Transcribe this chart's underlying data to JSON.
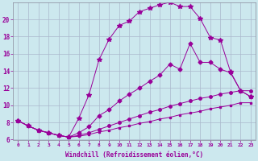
{
  "xlabel": "Windchill (Refroidissement éolien,°C)",
  "background_color": "#cce8ee",
  "grid_color": "#aab8cc",
  "line_color": "#990099",
  "xlim": [
    -0.5,
    23.5
  ],
  "ylim": [
    6,
    22
  ],
  "xticks": [
    0,
    1,
    2,
    3,
    4,
    5,
    6,
    7,
    8,
    9,
    10,
    11,
    12,
    13,
    14,
    15,
    16,
    17,
    18,
    19,
    20,
    21,
    22,
    23
  ],
  "yticks": [
    6,
    8,
    10,
    12,
    14,
    16,
    18,
    20
  ],
  "line1_x": [
    0,
    1,
    2,
    3,
    4,
    5,
    6,
    7,
    8,
    9,
    10,
    11,
    12,
    13,
    14,
    15,
    16,
    17,
    18,
    19,
    20,
    21,
    22,
    23
  ],
  "line1_y": [
    8.2,
    7.6,
    7.1,
    6.8,
    6.5,
    6.3,
    8.5,
    11.2,
    15.3,
    17.7,
    19.3,
    19.8,
    20.9,
    21.3,
    21.7,
    22.0,
    21.5,
    21.5,
    20.1,
    17.9,
    17.6,
    13.9,
    11.7,
    11.0
  ],
  "line2_x": [
    0,
    1,
    2,
    3,
    4,
    5,
    6,
    7,
    8,
    9,
    10,
    11,
    12,
    13,
    14,
    15,
    16,
    17,
    18,
    19,
    20,
    21,
    22,
    23
  ],
  "line2_y": [
    8.2,
    7.6,
    7.1,
    6.8,
    6.5,
    6.3,
    6.8,
    7.5,
    8.8,
    9.5,
    10.5,
    11.3,
    12.0,
    12.8,
    13.5,
    14.8,
    14.2,
    17.2,
    15.0,
    15.0,
    14.2,
    13.8,
    11.7,
    11.0
  ],
  "line3_x": [
    0,
    1,
    2,
    3,
    4,
    5,
    6,
    7,
    8,
    9,
    10,
    11,
    12,
    13,
    14,
    15,
    16,
    17,
    18,
    19,
    20,
    21,
    22,
    23
  ],
  "line3_y": [
    8.2,
    7.6,
    7.1,
    6.8,
    6.5,
    6.3,
    6.5,
    6.8,
    7.2,
    7.6,
    8.0,
    8.4,
    8.8,
    9.2,
    9.5,
    9.9,
    10.2,
    10.5,
    10.8,
    11.0,
    11.3,
    11.5,
    11.7,
    11.7
  ],
  "line4_x": [
    0,
    1,
    2,
    3,
    4,
    5,
    6,
    7,
    8,
    9,
    10,
    11,
    12,
    13,
    14,
    15,
    16,
    17,
    18,
    19,
    20,
    21,
    22,
    23
  ],
  "line4_y": [
    8.2,
    7.6,
    7.1,
    6.8,
    6.5,
    6.3,
    6.4,
    6.6,
    6.9,
    7.1,
    7.4,
    7.6,
    7.9,
    8.1,
    8.4,
    8.6,
    8.9,
    9.1,
    9.3,
    9.6,
    9.8,
    10.0,
    10.3,
    10.3
  ]
}
